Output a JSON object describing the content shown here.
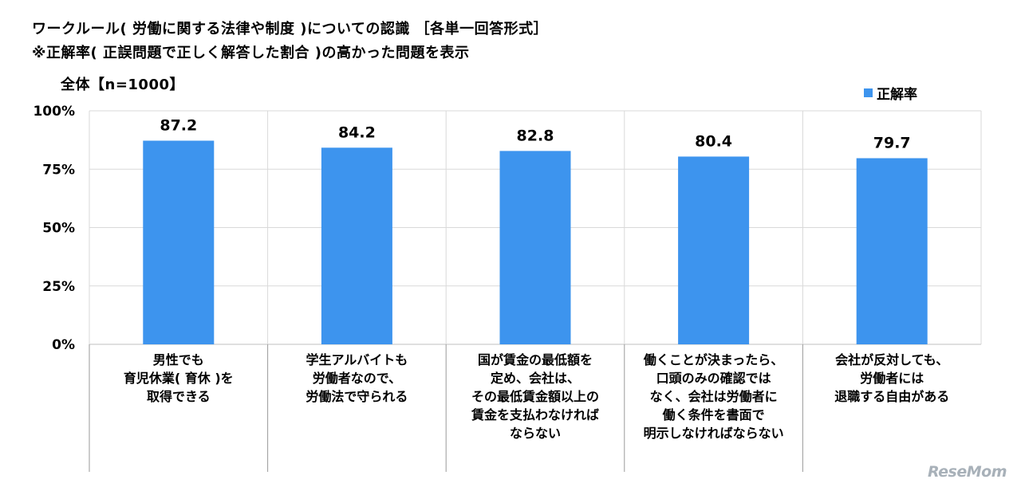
{
  "header": {
    "title": "ワークルール( 労働に関する法律や制度 )についての認識 ［各単一回答形式］",
    "subtitle": "※正解率( 正誤問題で正しく解答した割合 )の高かった問題を表示",
    "scope": "全体【n=1000】"
  },
  "watermark": "ReseMom",
  "colors": {
    "bar": "#3d94ee",
    "grid": "#d9d9d9",
    "axis": "#bfbfbf"
  },
  "chart_data": {
    "type": "bar",
    "ylim": [
      0,
      100
    ],
    "yticks": [
      "0%",
      "25%",
      "50%",
      "75%",
      "100%"
    ],
    "legend_position": "top-right",
    "grid": true,
    "series": [
      {
        "name": "正解率",
        "values": [
          87.2,
          84.2,
          82.8,
          80.4,
          79.7
        ]
      }
    ],
    "value_labels": [
      "87.2",
      "84.2",
      "82.8",
      "80.4",
      "79.7"
    ],
    "categories": [
      [
        "男性でも",
        "育児休業( 育休 )を",
        "取得できる"
      ],
      [
        "学生アルバイトも",
        "労働者なので、",
        "労働法で守られる"
      ],
      [
        "国が賃金の最低額を",
        "定め、会社は、",
        "その最低賃金額以上の",
        "賃金を支払わなければ",
        "ならない"
      ],
      [
        "働くことが決まったら、",
        "口頭のみの確認では",
        "なく、会社は労働者に",
        "働く条件を書面で",
        "明示しなければならない"
      ],
      [
        "会社が反対しても、",
        "労働者には",
        "退職する自由がある"
      ]
    ]
  }
}
